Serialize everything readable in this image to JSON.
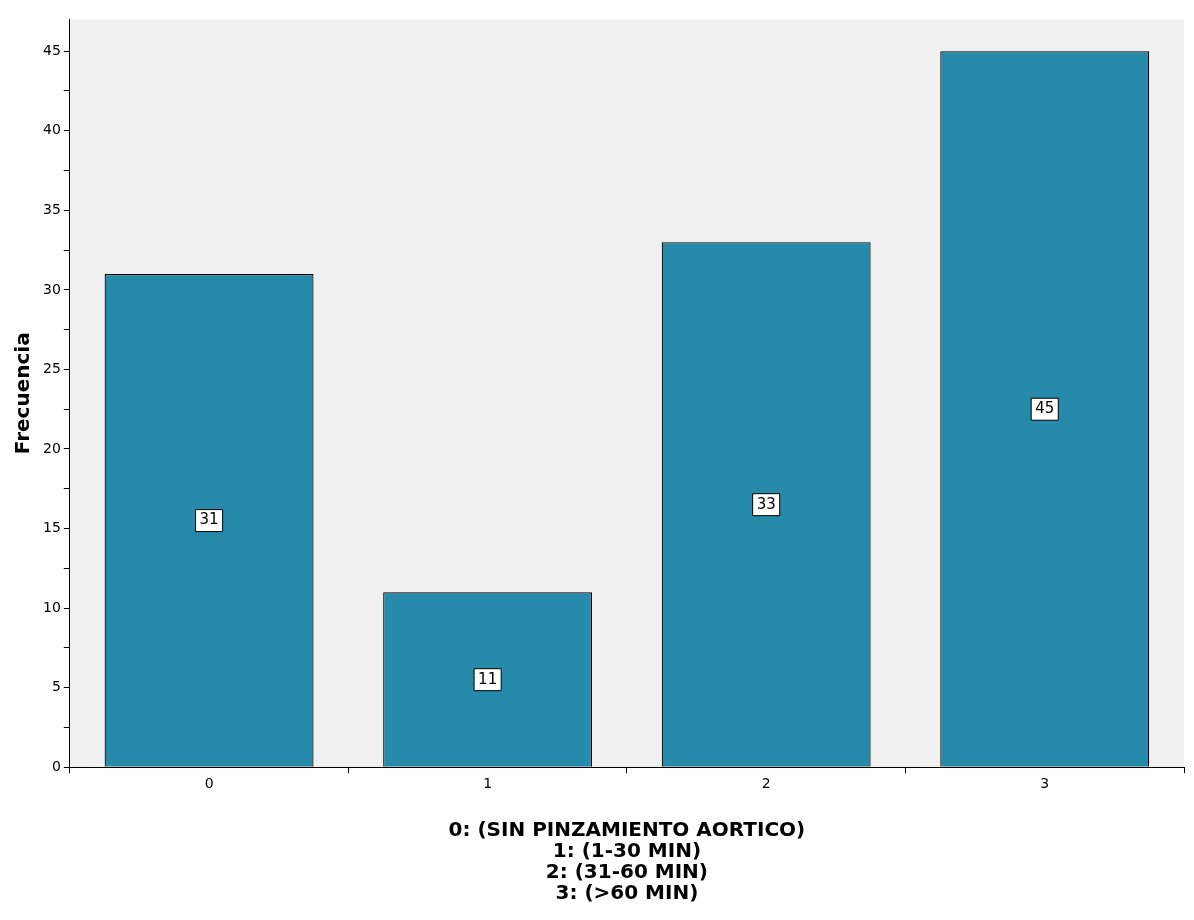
{
  "chart_data": {
    "type": "bar",
    "ylabel": "Frecuencia",
    "xlabel": "0: (SIN PINZAMIENTO AORTICO)\n1: (1-30 MIN)\n2: (31-60 MIN)\n3: (>60 MIN)",
    "categories": [
      "0",
      "1",
      "2",
      "3"
    ],
    "values": [
      31,
      11,
      33,
      45
    ],
    "color": "#268aaa",
    "ylim": [
      0,
      47
    ],
    "yticks": [
      0,
      {
        "value": 2.5,
        "label": null
      },
      5,
      {
        "value": 7.5,
        "label": null
      },
      10,
      {
        "value": 12.5,
        "label": null
      },
      15,
      {
        "value": 17.5,
        "label": null
      },
      20,
      {
        "value": 22.5,
        "label": null
      },
      25,
      {
        "value": 27.5,
        "label": null
      },
      30,
      {
        "value": 32.5,
        "label": null
      },
      35,
      {
        "value": 37.5,
        "label": null
      },
      40,
      {
        "value": 42.5,
        "label": null
      },
      45
    ],
    "data_labels": true,
    "grid": false,
    "legend": false
  }
}
